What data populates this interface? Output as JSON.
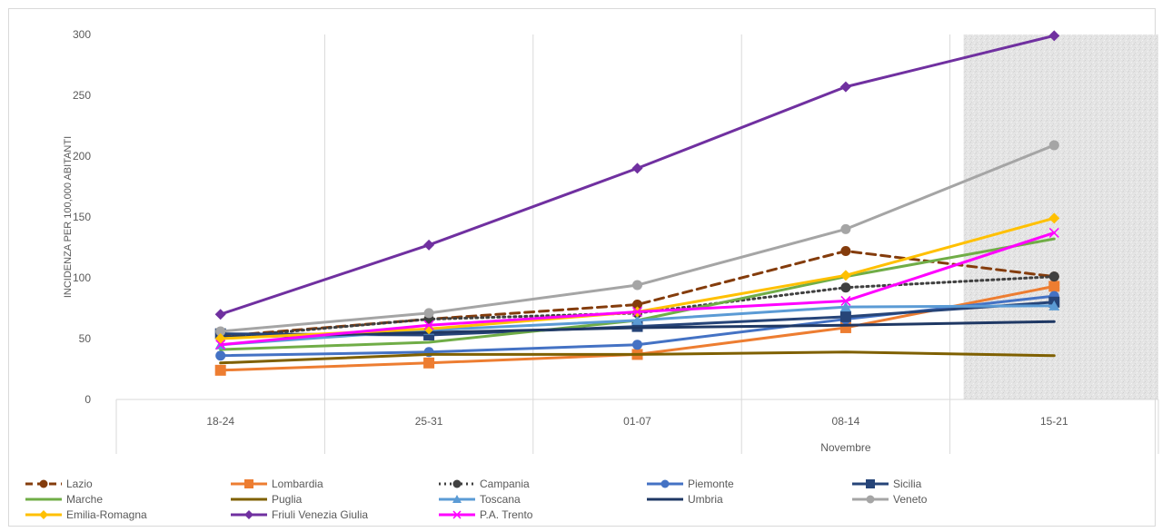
{
  "chart_data": {
    "type": "line",
    "title": "",
    "xlabel": "Novembre",
    "ylabel": "INCIDENZA PER 100,000 ABITANTI",
    "ylim": [
      0,
      300
    ],
    "yticks": [
      0,
      50,
      100,
      150,
      200,
      250,
      300
    ],
    "categories": [
      "18-24",
      "25-31",
      "01-07",
      "08-14",
      "15-21"
    ],
    "grid": "vertical",
    "shaded_region": "15-21",
    "legend_position": "bottom",
    "series": [
      {
        "name": "Lazio",
        "color": "#843c0c",
        "dash": "dashed",
        "marker": "circle",
        "values": [
          52,
          66,
          78,
          122,
          101
        ]
      },
      {
        "name": "Lombardia",
        "color": "#ed7d31",
        "dash": "solid",
        "marker": "square",
        "values": [
          24,
          30,
          37,
          59,
          93
        ]
      },
      {
        "name": "Campania",
        "color": "#404040",
        "dash": "dotted",
        "marker": "circle",
        "values": [
          51,
          66,
          71,
          92,
          101
        ]
      },
      {
        "name": "Piemonte",
        "color": "#4472c4",
        "dash": "solid",
        "marker": "circle",
        "values": [
          36,
          39,
          45,
          66,
          85
        ]
      },
      {
        "name": "Sicilia",
        "color": "#264478",
        "dash": "solid",
        "marker": "square",
        "values": [
          54,
          53,
          60,
          68,
          80
        ]
      },
      {
        "name": "Marche",
        "color": "#70ad47",
        "dash": "solid",
        "marker": "none",
        "values": [
          41,
          47,
          65,
          101,
          132
        ]
      },
      {
        "name": "Puglia",
        "color": "#7f6000",
        "dash": "solid",
        "marker": "none",
        "values": [
          30,
          37,
          37,
          39,
          36
        ]
      },
      {
        "name": "Toscana",
        "color": "#5b9bd5",
        "dash": "solid",
        "marker": "triangle",
        "values": [
          45,
          57,
          65,
          76,
          77
        ]
      },
      {
        "name": "Umbria",
        "color": "#1f3864",
        "dash": "solid",
        "marker": "none",
        "values": [
          51,
          55,
          59,
          61,
          64
        ]
      },
      {
        "name": "Veneto",
        "color": "#a5a5a5",
        "dash": "solid",
        "marker": "circle",
        "values": [
          56,
          71,
          94,
          140,
          209
        ]
      },
      {
        "name": "Emilia-Romagna",
        "color": "#ffc000",
        "dash": "solid",
        "marker": "diamond",
        "values": [
          50,
          58,
          72,
          102,
          149
        ]
      },
      {
        "name": "Friuli Venezia Giulia",
        "color": "#7030a0",
        "dash": "solid",
        "marker": "diamond",
        "values": [
          70,
          127,
          190,
          257,
          299
        ]
      },
      {
        "name": "P.A. Trento",
        "color": "#ff00ff",
        "dash": "solid",
        "marker": "x",
        "values": [
          45,
          61,
          72,
          81,
          137
        ]
      }
    ]
  }
}
